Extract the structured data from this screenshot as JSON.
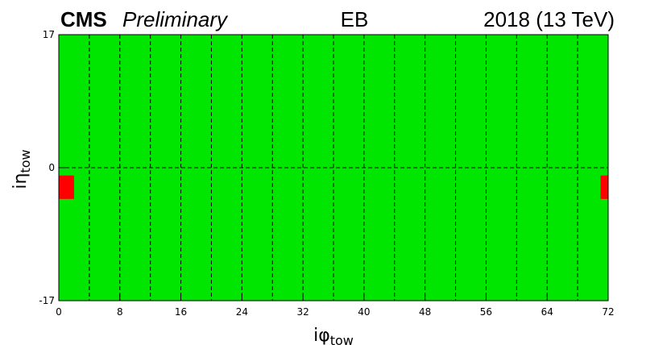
{
  "chart_data": {
    "type": "heatmap",
    "header": {
      "experiment": "CMS",
      "status": "Preliminary",
      "region": "EB",
      "run": "2018 (13 TeV)"
    },
    "xlabel_main": "iφ",
    "xlabel_sub": "tow",
    "ylabel_main": "iη",
    "ylabel_sub": "tow",
    "xlim": [
      0,
      72
    ],
    "ylim": [
      -17,
      17
    ],
    "x_ticks": [
      "0",
      "8",
      "16",
      "24",
      "32",
      "40",
      "48",
      "56",
      "64",
      "72"
    ],
    "y_ticks": [
      "-17",
      "0",
      "17"
    ],
    "x_tick_values": [
      0,
      8,
      16,
      24,
      32,
      40,
      48,
      56,
      64,
      72
    ],
    "y_tick_values": [
      -17,
      0,
      17
    ],
    "vertical_gridlines": [
      4,
      8,
      12,
      16,
      20,
      24,
      28,
      32,
      36,
      40,
      44,
      48,
      52,
      56,
      60,
      64,
      68
    ],
    "horizontal_gridlines": [
      0
    ],
    "colors": {
      "good": "#00e600",
      "bad": "#ff0000",
      "grid": "#000000"
    },
    "default_status": "good",
    "flagged_towers": [
      {
        "iphi_range": [
          0,
          2
        ],
        "ieta_range": [
          -4,
          -1
        ],
        "status": "bad"
      },
      {
        "iphi_range": [
          71,
          72
        ],
        "ieta_range": [
          -4,
          -1
        ],
        "status": "bad"
      }
    ]
  }
}
